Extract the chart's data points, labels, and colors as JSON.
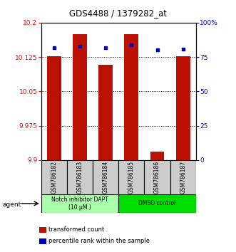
{
  "title": "GDS4488 / 1379282_at",
  "samples": [
    "GSM786182",
    "GSM786183",
    "GSM786184",
    "GSM786185",
    "GSM786186",
    "GSM786187"
  ],
  "red_values": [
    10.127,
    10.175,
    10.108,
    10.175,
    9.918,
    10.127
  ],
  "blue_values": [
    82,
    83,
    82,
    84,
    80,
    81
  ],
  "ylim_left": [
    9.9,
    10.2
  ],
  "ylim_right": [
    0,
    100
  ],
  "yticks_left": [
    9.9,
    9.975,
    10.05,
    10.125,
    10.2
  ],
  "ytick_labels_left": [
    "9.9",
    "9.975",
    "10.05",
    "10.125",
    "10.2"
  ],
  "yticks_right": [
    0,
    25,
    50,
    75,
    100
  ],
  "ytick_labels_right": [
    "0",
    "25",
    "50",
    "75",
    "100%"
  ],
  "groups": [
    {
      "label": "Notch inhibitor DAPT\n(10 μM.)",
      "color": "#aaffaa",
      "start": 0,
      "end": 3
    },
    {
      "label": "DMSO control",
      "color": "#00dd00",
      "start": 3,
      "end": 6
    }
  ],
  "bar_color": "#bb1100",
  "dot_color": "#0000bb",
  "bar_width": 0.55,
  "background_color": "#ffffff",
  "agent_label": "agent",
  "legend": [
    {
      "color": "#bb1100",
      "label": "transformed count"
    },
    {
      "color": "#0000bb",
      "label": "percentile rank within the sample"
    }
  ]
}
